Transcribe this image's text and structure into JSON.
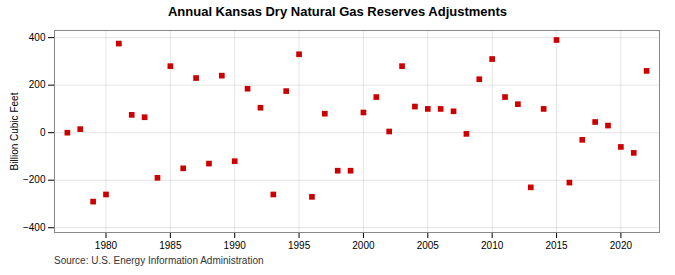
{
  "chart_data": {
    "type": "scatter",
    "title": "Annual Kansas Dry Natural Gas Reserves Adjustments",
    "ylabel": "Billion Cubic Feet",
    "source": "Source: U.S. Energy Information Administration",
    "x": [
      1977,
      1978,
      1979,
      1980,
      1981,
      1982,
      1983,
      1984,
      1985,
      1986,
      1987,
      1988,
      1989,
      1990,
      1991,
      1992,
      1993,
      1994,
      1995,
      1996,
      1997,
      1998,
      1999,
      2000,
      2001,
      2002,
      2003,
      2004,
      2005,
      2006,
      2007,
      2008,
      2009,
      2010,
      2011,
      2012,
      2013,
      2014,
      2015,
      2016,
      2017,
      2018,
      2019,
      2020,
      2021,
      2022
    ],
    "values": [
      0,
      15,
      -290,
      -260,
      375,
      75,
      65,
      -190,
      280,
      -150,
      230,
      -130,
      240,
      -120,
      185,
      105,
      -260,
      175,
      330,
      -270,
      80,
      -160,
      -160,
      85,
      150,
      5,
      280,
      110,
      100,
      100,
      90,
      -5,
      225,
      310,
      150,
      120,
      -230,
      100,
      390,
      -210,
      -30,
      45,
      30,
      -60,
      -85,
      260
    ],
    "color": "#cc0000",
    "marker": "square",
    "xlim": [
      1976,
      2023
    ],
    "ylim": [
      -420,
      430
    ],
    "xticks": [
      1980,
      1985,
      1990,
      1995,
      2000,
      2005,
      2010,
      2015,
      2020
    ],
    "yticks": [
      -400,
      -200,
      0,
      200,
      400
    ],
    "grid": true
  }
}
